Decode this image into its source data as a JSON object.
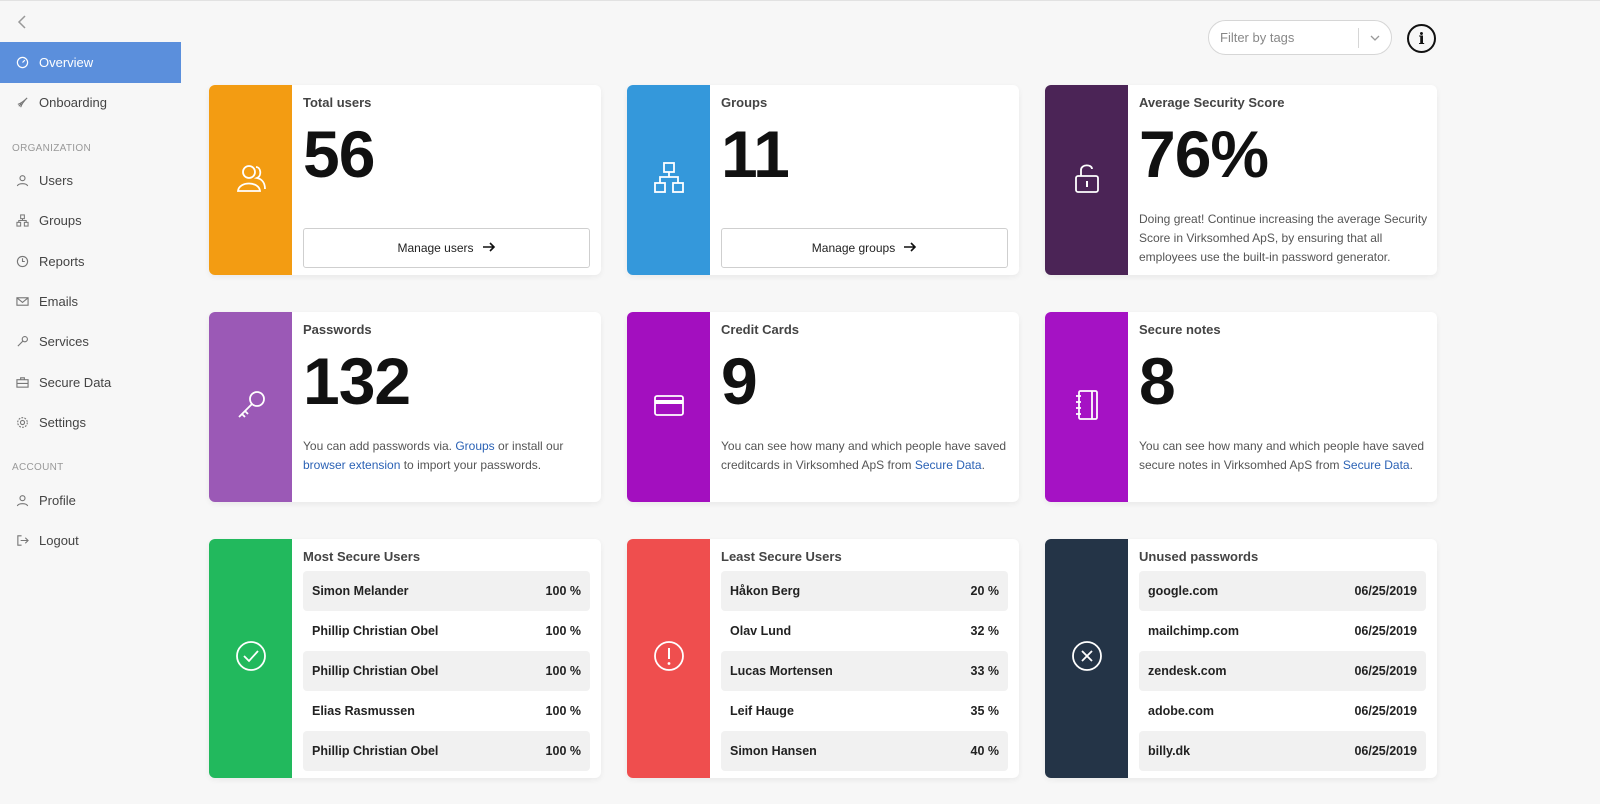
{
  "sidebar": {
    "top_items": [
      {
        "label": "Overview",
        "icon": "gauge-icon",
        "active": true
      },
      {
        "label": "Onboarding",
        "icon": "rocket-icon"
      }
    ],
    "org_heading": "ORGANIZATION",
    "org_items": [
      {
        "label": "Users",
        "icon": "user-icon"
      },
      {
        "label": "Groups",
        "icon": "sitemap-icon"
      },
      {
        "label": "Reports",
        "icon": "clock-icon"
      },
      {
        "label": "Emails",
        "icon": "mail-icon"
      },
      {
        "label": "Services",
        "icon": "key-icon"
      },
      {
        "label": "Secure Data",
        "icon": "briefcase-icon"
      },
      {
        "label": "Settings",
        "icon": "gear-icon"
      }
    ],
    "account_heading": "ACCOUNT",
    "account_items": [
      {
        "label": "Profile",
        "icon": "user-icon"
      },
      {
        "label": "Logout",
        "icon": "logout-icon"
      }
    ]
  },
  "filter": {
    "placeholder": "Filter by tags"
  },
  "info_label": "i",
  "colors": {
    "orange": "#f39c12",
    "blue": "#3498db",
    "dark_purple": "#4b2456",
    "purple": "#9b59b6",
    "magenta": "#a30fbf",
    "magenta2": "#a512c4",
    "green": "#22b95d",
    "red": "#ef4e4e",
    "navy": "#243447",
    "active_nav": "#5b8fdc"
  },
  "cards": {
    "total_users": {
      "title": "Total users",
      "value": "56",
      "button": "Manage users"
    },
    "groups": {
      "title": "Groups",
      "value": "11",
      "button": "Manage groups"
    },
    "security": {
      "title": "Average Security Score",
      "value": "76%",
      "desc": "Doing great! Continue increasing the average Security Score in Virksomhed ApS, by ensuring that all employees use the built-in password generator."
    },
    "passwords": {
      "title": "Passwords",
      "value": "132",
      "desc_a": "You can add passwords via. ",
      "link_a": "Groups",
      "desc_b": " or install our ",
      "link_b": "browser extension",
      "desc_c": " to import your passwords."
    },
    "credit_cards": {
      "title": "Credit Cards",
      "value": "9",
      "desc_a": "You can see how many and which people have saved creditcards in Virksomhed ApS from ",
      "link": "Secure Data",
      "desc_b": "."
    },
    "secure_notes": {
      "title": "Secure notes",
      "value": "8",
      "desc_a": "You can see how many and which people have saved secure notes in Virksomhed ApS from ",
      "link": "Secure Data",
      "desc_b": "."
    },
    "most_secure": {
      "title": "Most Secure Users",
      "rows": [
        {
          "name": "Simon Melander",
          "value": "100 %"
        },
        {
          "name": "Phillip Christian Obel",
          "value": "100 %"
        },
        {
          "name": "Phillip Christian Obel",
          "value": "100 %"
        },
        {
          "name": "Elias Rasmussen",
          "value": "100 %"
        },
        {
          "name": "Phillip Christian Obel",
          "value": "100 %"
        }
      ]
    },
    "least_secure": {
      "title": "Least Secure Users",
      "rows": [
        {
          "name": "Håkon Berg",
          "value": "20 %"
        },
        {
          "name": "Olav Lund",
          "value": "32 %"
        },
        {
          "name": "Lucas Mortensen",
          "value": "33 %"
        },
        {
          "name": "Leif Hauge",
          "value": "35 %"
        },
        {
          "name": "Simon Hansen",
          "value": "40 %"
        }
      ]
    },
    "unused": {
      "title": "Unused passwords",
      "rows": [
        {
          "name": "google.com",
          "value": "06/25/2019"
        },
        {
          "name": "mailchimp.com",
          "value": "06/25/2019"
        },
        {
          "name": "zendesk.com",
          "value": "06/25/2019"
        },
        {
          "name": "adobe.com",
          "value": "06/25/2019"
        },
        {
          "name": "billy.dk",
          "value": "06/25/2019"
        }
      ]
    }
  }
}
